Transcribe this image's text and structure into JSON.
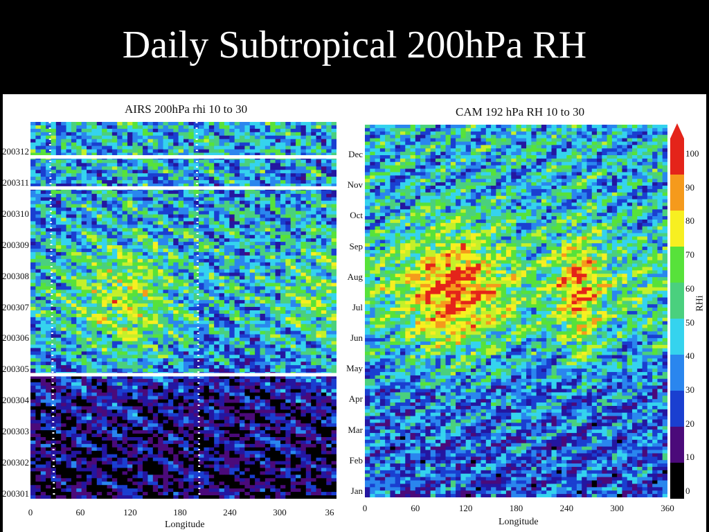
{
  "slide": {
    "title": "Daily Subtropical 200hPa RH"
  },
  "colors": {
    "palette": [
      "#000000",
      "#4b0a7a",
      "#2416a0",
      "#1a3fd0",
      "#2a86ee",
      "#35d3ee",
      "#4ad07e",
      "#57e23a",
      "#c4f02a",
      "#f7ef21",
      "#f59a1c",
      "#e4241a"
    ]
  },
  "chart_data": [
    {
      "type": "heatmap",
      "title": "AIRS 200hPa rhi 10 to 30",
      "xlabel": "Longitude",
      "ylabel": "",
      "x_ticks": [
        "0",
        "60",
        "120",
        "180",
        "240",
        "300",
        "36"
      ],
      "y_ticks": [
        "200312",
        "200311",
        "200310",
        "200309",
        "200308",
        "200307",
        "200306",
        "200305",
        "200304",
        "200303",
        "200302",
        "200301"
      ],
      "xlim": [
        0,
        360
      ],
      "value_range": [
        0,
        100
      ],
      "missing_data_rows": [
        "200312",
        "200311",
        "200305"
      ],
      "description_of_pattern": "low RH Jan-Apr, high RH Jun-Sep with maxima near 60-180 and 300-360 longitude"
    },
    {
      "type": "heatmap",
      "title": "CAM 192 hPa RH 10 to 30",
      "xlabel": "Longitude",
      "ylabel": "",
      "x_ticks": [
        "0",
        "60",
        "120",
        "180",
        "240",
        "300",
        "360"
      ],
      "y_ticks": [
        "Dec",
        "Nov",
        "Oct",
        "Sep",
        "Aug",
        "Jul",
        "Jun",
        "May",
        "Apr",
        "Mar",
        "Feb",
        "Jan"
      ],
      "xlim": [
        0,
        360
      ],
      "colorbar": {
        "label": "RHi",
        "ticks": [
          "100",
          "90",
          "80",
          "70",
          "60",
          "50",
          "40",
          "30",
          "20",
          "10",
          "0"
        ],
        "range": [
          0,
          100
        ]
      }
    }
  ]
}
